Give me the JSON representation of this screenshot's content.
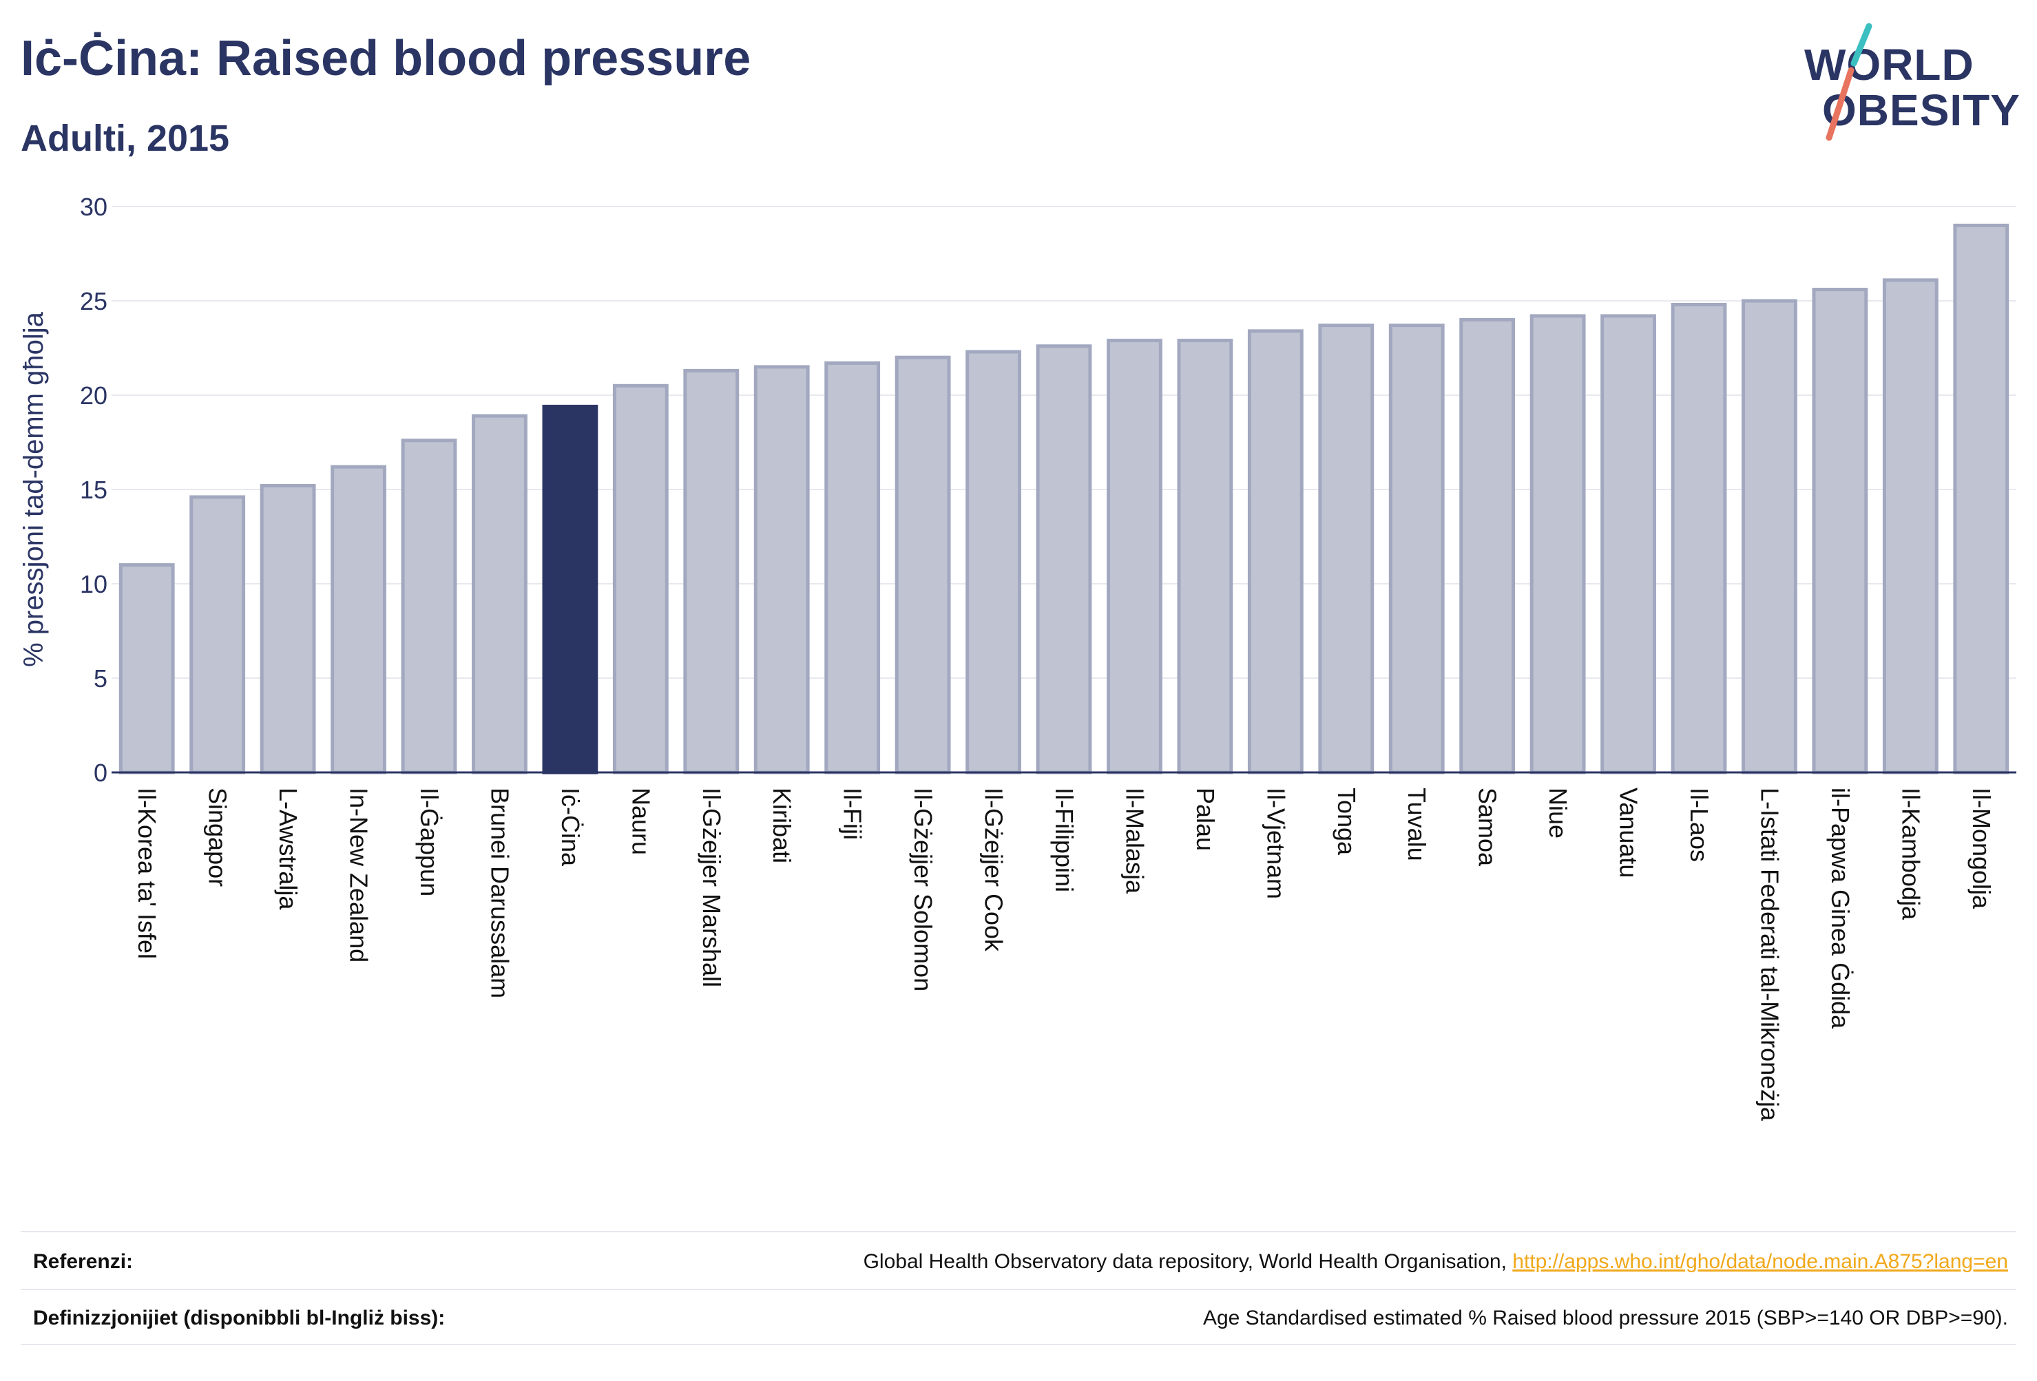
{
  "header": {
    "title": "Iċ-Ċina: Raised blood pressure",
    "subtitle": "Adulti, 2015"
  },
  "logo": {
    "line1": "WORLD",
    "line2": "OBESITY",
    "colors": {
      "text": "#2b3564",
      "slash_top": "#3bbfc0",
      "slash_bottom": "#e8735f"
    }
  },
  "chart_data": {
    "type": "bar",
    "ylabel": "% pressjoni tad-demm għolja",
    "xlabel": "",
    "ylim": [
      0,
      30
    ],
    "yticks": [
      0,
      5,
      10,
      15,
      20,
      25,
      30
    ],
    "grid": true,
    "highlight": "Iċ-Ċina",
    "colors": {
      "bar": "#c0c4d2",
      "bar_edge": "#a2a8bf",
      "highlight": "#2b3564"
    },
    "categories": [
      "Il-Korea ta' Isfel",
      "Singapor",
      "L-Awstralja",
      "In-New Zealand",
      "Il-Ġappun",
      "Brunei Darussalam",
      "Iċ-Ċina",
      "Nauru",
      "Il-Gżejjer Marshall",
      "Kiribati",
      "Il-Fiji",
      "Il-Gżejjer Solomon",
      "Il-Gżejjer Cook",
      "Il-Filippini",
      "Il-Malasja",
      "Palau",
      "Il-Vjetnam",
      "Tonga",
      "Tuvalu",
      "Samoa",
      "Niue",
      "Vanuatu",
      "Il-Laos",
      "L-Istati Federati tal-Mikroneżja",
      "il-Papwa Ginea Ġdida",
      "Il-Kambodja",
      "Il-Mongolja"
    ],
    "values": [
      11.0,
      14.6,
      15.2,
      16.2,
      17.6,
      18.9,
      19.4,
      20.5,
      21.3,
      21.5,
      21.7,
      22.0,
      22.3,
      22.6,
      22.9,
      22.9,
      23.4,
      23.7,
      23.7,
      24.0,
      24.2,
      24.2,
      24.8,
      25.0,
      25.6,
      26.1,
      29.0
    ]
  },
  "footer": {
    "references_label": "Referenzi:",
    "references_text": "Global Health Observatory data repository, World Health Organisation,",
    "references_link": "http://apps.who.int/gho/data/node.main.A875?lang=en",
    "definitions_label": "Definizzjonijiet (disponibbli bl-Ingliż biss):",
    "definitions_text": "Age Standardised estimated % Raised blood pressure 2015 (SBP>=140 OR DBP>=90)."
  }
}
